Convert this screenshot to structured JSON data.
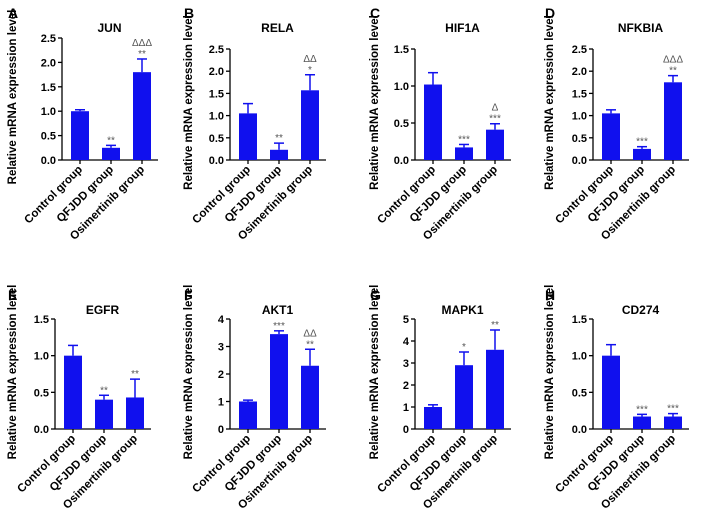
{
  "chart_data": [
    {
      "panel": "A",
      "title": "JUN",
      "type": "bar",
      "ylabel": "Relative mRNA expression level",
      "categories": [
        "Control group",
        "QFJDD group",
        "Osimertinib group"
      ],
      "values": [
        1.0,
        0.25,
        1.8
      ],
      "errors": [
        0.03,
        0.05,
        0.27
      ],
      "significance": [
        [],
        [
          "**"
        ],
        [
          "**",
          "ΔΔΔ"
        ]
      ],
      "ylim": [
        0,
        2.5
      ],
      "yticks": [
        "0.0",
        "0.5",
        "1.0",
        "1.5",
        "2.0",
        "2.5"
      ]
    },
    {
      "panel": "B",
      "title": "RELA",
      "type": "bar",
      "ylabel": "Relative mRNA expression level",
      "categories": [
        "Control group",
        "QFJDD group",
        "Osimertinib group"
      ],
      "values": [
        1.05,
        0.23,
        1.57
      ],
      "errors": [
        0.22,
        0.15,
        0.35
      ],
      "significance": [
        [],
        [
          "**"
        ],
        [
          "*",
          "ΔΔ"
        ]
      ],
      "ylim": [
        0,
        2.5
      ],
      "yticks": [
        "0.0",
        "0.5",
        "1.0",
        "1.5",
        "2.0",
        "2.5"
      ]
    },
    {
      "panel": "C",
      "title": "HIF1A",
      "type": "bar",
      "ylabel": "Relative mRNA expression level",
      "categories": [
        "Control group",
        "QFJDD group",
        "Osimertinib group"
      ],
      "values": [
        1.02,
        0.17,
        0.41
      ],
      "errors": [
        0.16,
        0.04,
        0.08
      ],
      "significance": [
        [],
        [
          "***"
        ],
        [
          "***",
          "Δ"
        ]
      ],
      "ylim": [
        0,
        1.5
      ],
      "yticks": [
        "0.0",
        "0.5",
        "1.0",
        "1.5"
      ]
    },
    {
      "panel": "D",
      "title": "NFKBIA",
      "type": "bar",
      "ylabel": "Relative mRNA expression level",
      "categories": [
        "Control group",
        "QFJDD group",
        "Osimertinib group"
      ],
      "values": [
        1.05,
        0.25,
        1.75
      ],
      "errors": [
        0.08,
        0.05,
        0.15
      ],
      "significance": [
        [],
        [
          "***"
        ],
        [
          "**",
          "ΔΔΔ"
        ]
      ],
      "ylim": [
        0,
        2.5
      ],
      "yticks": [
        "0.0",
        "0.5",
        "1.0",
        "1.5",
        "2.0",
        "2.5"
      ]
    },
    {
      "panel": "E",
      "title": "EGFR",
      "type": "bar",
      "ylabel": "Relative mRNA expression level",
      "categories": [
        "Control group",
        "QFJDD group",
        "Osimertinib group"
      ],
      "values": [
        1.0,
        0.4,
        0.43
      ],
      "errors": [
        0.14,
        0.06,
        0.25
      ],
      "significance": [
        [],
        [
          "**"
        ],
        [
          "**"
        ]
      ],
      "ylim": [
        0,
        1.5
      ],
      "yticks": [
        "0.0",
        "0.5",
        "1.0",
        "1.5"
      ]
    },
    {
      "panel": "F",
      "title": "AKT1",
      "type": "bar",
      "ylabel": "Relative mRNA expression level",
      "categories": [
        "Control group",
        "QFJDD group",
        "Osimertinib group"
      ],
      "values": [
        1.0,
        3.45,
        2.3
      ],
      "errors": [
        0.05,
        0.12,
        0.6
      ],
      "significance": [
        [],
        [
          "***"
        ],
        [
          "**",
          "ΔΔ"
        ]
      ],
      "ylim": [
        0,
        4
      ],
      "yticks": [
        "0",
        "1",
        "2",
        "3",
        "4"
      ]
    },
    {
      "panel": "G",
      "title": "MAPK1",
      "type": "bar",
      "ylabel": "Relative mRNA expression level",
      "categories": [
        "Control group",
        "QFJDD group",
        "Osimertinib group"
      ],
      "values": [
        1.0,
        2.9,
        3.6
      ],
      "errors": [
        0.1,
        0.6,
        0.9
      ],
      "significance": [
        [],
        [
          "*"
        ],
        [
          "**"
        ]
      ],
      "ylim": [
        0,
        5
      ],
      "yticks": [
        "0",
        "1",
        "2",
        "3",
        "4",
        "5"
      ]
    },
    {
      "panel": "H",
      "title": "CD274",
      "type": "bar",
      "ylabel": "Relative mRNA expression level",
      "categories": [
        "Control group",
        "QFJDD group",
        "Osimertinib group"
      ],
      "values": [
        1.0,
        0.17,
        0.17
      ],
      "errors": [
        0.15,
        0.03,
        0.04
      ],
      "significance": [
        [],
        [
          "***"
        ],
        [
          "***"
        ]
      ],
      "ylim": [
        0,
        1.5
      ],
      "yticks": [
        "0.0",
        "0.5",
        "1.0",
        "1.5"
      ]
    }
  ],
  "colors": {
    "bar": "#1010ee",
    "axis": "#000000",
    "sig": "#555555"
  }
}
